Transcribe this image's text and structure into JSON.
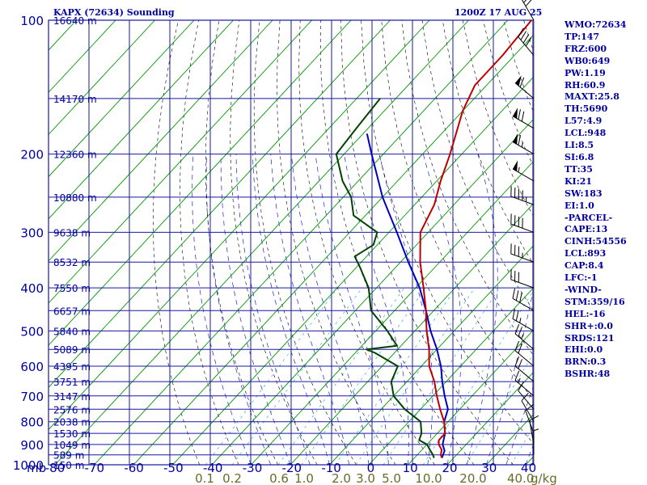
{
  "header": {
    "station": "KAPX (72634) Sounding",
    "time": "1200Z 17 AUG 25"
  },
  "indices": [
    "WMO:72634",
    "TP:147",
    "FRZ:600",
    "WB0:649",
    "PW:1.19",
    "RH:60.9",
    "MAXT:25.8",
    "TH:5690",
    "L57:4.9",
    "LCL:948",
    "LI:8.5",
    "SI:6.8",
    "TT:35",
    "KI:21",
    "SW:183",
    "EI:1.0",
    "-PARCEL-",
    "CAPE:13",
    "CINH:54556",
    "LCL:893",
    "CAP:8.4",
    "LFC:-1",
    "-WIND-",
    "STM:359/16",
    "HEL:-16",
    "SHR+:0.0",
    "SRDS:121",
    "EHI:0.0",
    "BRN:0.3",
    "BSHR:48"
  ],
  "colors": {
    "grid": "#1818a0",
    "isotherm": "#009900",
    "dry_adiabat": "#000000",
    "moist_adiabat": "#2222cc",
    "mixing_ratio": "#33aadd",
    "temperature": "#c00000",
    "dewpoint": "#004400",
    "parcel": "#0000c0",
    "label": "#0000a0",
    "mixing_label": "#6a6a2a"
  },
  "chart_data": {
    "type": "skew-t",
    "x_axis": {
      "label": "mb",
      "ticks": [
        "-80",
        "-70",
        "-60",
        "-50",
        "-40",
        "-30",
        "-20",
        "-10",
        "0",
        "10",
        "20",
        "30",
        "40"
      ]
    },
    "pressure_ticks": [
      "100",
      "200",
      "300",
      "400",
      "500",
      "600",
      "700",
      "800",
      "900",
      "1000"
    ],
    "height_labels": [
      {
        "p": 100,
        "text": "16640 m"
      },
      {
        "p": 150,
        "text": "14170 m"
      },
      {
        "p": 200,
        "text": "12360 m"
      },
      {
        "p": 250,
        "text": "10880 m"
      },
      {
        "p": 300,
        "text": "9638 m"
      },
      {
        "p": 350,
        "text": "8532 m"
      },
      {
        "p": 400,
        "text": "7550 m"
      },
      {
        "p": 450,
        "text": "6657 m"
      },
      {
        "p": 500,
        "text": "5840 m"
      },
      {
        "p": 550,
        "text": "5089 m"
      },
      {
        "p": 600,
        "text": "4395 m"
      },
      {
        "p": 650,
        "text": "3751 m"
      },
      {
        "p": 700,
        "text": "3147 m"
      },
      {
        "p": 750,
        "text": "2576 m"
      },
      {
        "p": 800,
        "text": "2038 m"
      },
      {
        "p": 850,
        "text": "1530 m"
      },
      {
        "p": 900,
        "text": "1049 m"
      },
      {
        "p": 950,
        "text": "589 m"
      },
      {
        "p": 1000,
        "text": "150 m"
      }
    ],
    "mixing_ratio_labels": [
      "0.1",
      "0.2",
      "0.6",
      "1.0",
      "2.0",
      "3.0",
      "5.0",
      "10.0",
      "20.0",
      "40.0"
    ],
    "mixing_ratio_unit": "g/kg",
    "temperature": [
      [
        100,
        -64
      ],
      [
        120,
        -63
      ],
      [
        140,
        -63
      ],
      [
        160,
        -60
      ],
      [
        200,
        -53
      ],
      [
        230,
        -49
      ],
      [
        260,
        -45
      ],
      [
        300,
        -42
      ],
      [
        350,
        -35
      ],
      [
        400,
        -28
      ],
      [
        450,
        -22
      ],
      [
        500,
        -17
      ],
      [
        550,
        -12
      ],
      [
        600,
        -8
      ],
      [
        650,
        -3
      ],
      [
        700,
        1
      ],
      [
        750,
        5
      ],
      [
        800,
        9
      ],
      [
        850,
        12
      ],
      [
        880,
        12
      ],
      [
        900,
        13
      ],
      [
        925,
        15
      ],
      [
        950,
        16
      ],
      [
        965,
        17
      ]
    ],
    "dewpoint": [
      [
        150,
        -84
      ],
      [
        175,
        -83
      ],
      [
        200,
        -82
      ],
      [
        230,
        -74
      ],
      [
        250,
        -68
      ],
      [
        275,
        -63
      ],
      [
        300,
        -53
      ],
      [
        320,
        -51
      ],
      [
        340,
        -53
      ],
      [
        360,
        -49
      ],
      [
        400,
        -42
      ],
      [
        450,
        -36
      ],
      [
        500,
        -27
      ],
      [
        540,
        -21
      ],
      [
        550,
        -28
      ],
      [
        560,
        -25
      ],
      [
        600,
        -16
      ],
      [
        650,
        -14
      ],
      [
        700,
        -10
      ],
      [
        750,
        -4
      ],
      [
        800,
        3
      ],
      [
        850,
        6
      ],
      [
        880,
        7
      ],
      [
        900,
        10
      ],
      [
        925,
        12
      ],
      [
        950,
        14
      ],
      [
        965,
        15
      ]
    ],
    "parcel": [
      [
        180,
        -79
      ],
      [
        200,
        -73
      ],
      [
        250,
        -60
      ],
      [
        300,
        -48
      ],
      [
        350,
        -38
      ],
      [
        400,
        -29
      ],
      [
        450,
        -22
      ],
      [
        500,
        -16
      ],
      [
        550,
        -10
      ],
      [
        600,
        -5
      ],
      [
        650,
        -1
      ],
      [
        700,
        3
      ],
      [
        750,
        7
      ],
      [
        800,
        9
      ],
      [
        850,
        12
      ],
      [
        900,
        14
      ],
      [
        930,
        16
      ],
      [
        965,
        17
      ]
    ],
    "wind_barbs": [
      [
        100,
        330,
        30
      ],
      [
        120,
        320,
        40
      ],
      [
        150,
        310,
        60
      ],
      [
        175,
        300,
        70
      ],
      [
        200,
        300,
        65
      ],
      [
        230,
        300,
        55
      ],
      [
        260,
        290,
        45
      ],
      [
        300,
        290,
        40
      ],
      [
        350,
        290,
        35
      ],
      [
        400,
        290,
        30
      ],
      [
        450,
        300,
        30
      ],
      [
        500,
        300,
        25
      ],
      [
        550,
        310,
        25
      ],
      [
        600,
        310,
        20
      ],
      [
        650,
        310,
        20
      ],
      [
        700,
        310,
        15
      ],
      [
        750,
        320,
        10
      ],
      [
        800,
        330,
        10
      ],
      [
        850,
        340,
        10
      ],
      [
        900,
        350,
        10
      ],
      [
        950,
        360,
        5
      ]
    ],
    "grid": true
  }
}
